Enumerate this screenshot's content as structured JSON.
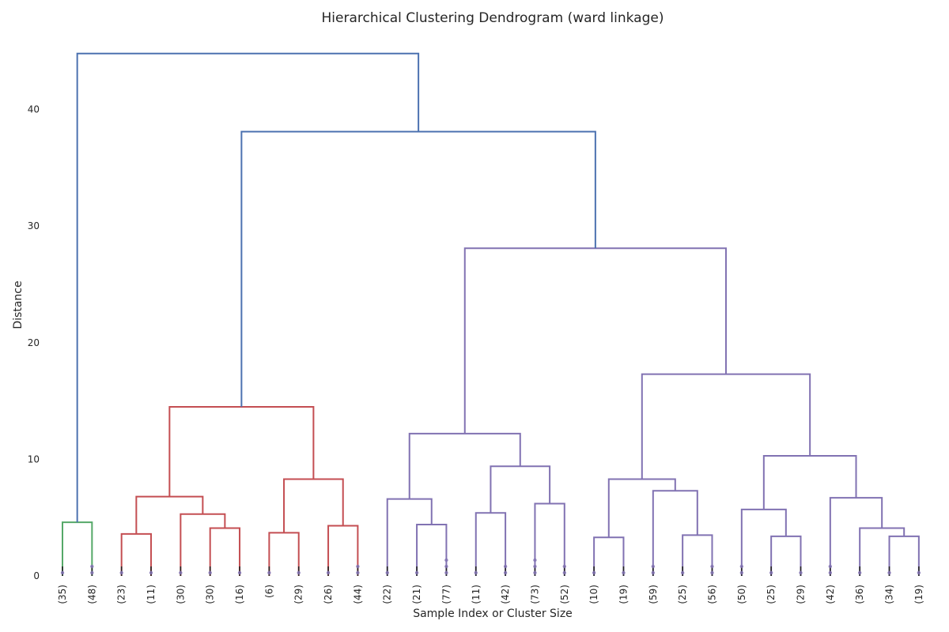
{
  "chart_data": {
    "type": "dendrogram",
    "title": "Hierarchical Clustering Dendrogram (ward linkage)",
    "xlabel": "Sample Index or Cluster Size",
    "ylabel": "Distance",
    "ylim": [
      0,
      46
    ],
    "yticks": [
      "0",
      "10",
      "20",
      "30",
      "40"
    ],
    "grid": false,
    "leaves": [
      "(35)",
      "(48)",
      "(23)",
      "(11)",
      "(30)",
      "(30)",
      "(16)",
      "(6)",
      "(29)",
      "(26)",
      "(44)",
      "(22)",
      "(21)",
      "(77)",
      "(11)",
      "(42)",
      "(73)",
      "(52)",
      "(10)",
      "(19)",
      "(59)",
      "(25)",
      "(56)",
      "(50)",
      "(25)",
      "(29)",
      "(42)",
      "(36)",
      "(34)",
      "(19)"
    ],
    "colors": {
      "green": "#55a868",
      "red": "#c44e52",
      "purple": "#8172b2",
      "above_threshold": "#4c72b0",
      "truncation_marks": "#8172b2"
    },
    "merges": [
      {
        "left": "L0",
        "right": "L1",
        "height": 4.6,
        "color": "green"
      },
      {
        "left": "L2",
        "right": "L3",
        "height": 3.6,
        "color": "red"
      },
      {
        "left": "L5",
        "right": "L6",
        "height": 4.1,
        "color": "red"
      },
      {
        "left": "L4",
        "right": "N2",
        "height": 5.3,
        "color": "red"
      },
      {
        "left": "N1",
        "right": "N3",
        "height": 6.8,
        "color": "red"
      },
      {
        "left": "L7",
        "right": "L8",
        "height": 3.7,
        "color": "red"
      },
      {
        "left": "L9",
        "right": "L10",
        "height": 4.3,
        "color": "red"
      },
      {
        "left": "N5",
        "right": "N6",
        "height": 8.3,
        "color": "red"
      },
      {
        "left": "N4",
        "right": "N7",
        "height": 14.5,
        "color": "red"
      },
      {
        "left": "L12",
        "right": "L13",
        "height": 4.4,
        "color": "purple"
      },
      {
        "left": "L11",
        "right": "N9",
        "height": 6.6,
        "color": "purple"
      },
      {
        "left": "L14",
        "right": "L15",
        "height": 5.4,
        "color": "purple"
      },
      {
        "left": "L16",
        "right": "L17",
        "height": 6.2,
        "color": "purple"
      },
      {
        "left": "N11",
        "right": "N12",
        "height": 9.4,
        "color": "purple"
      },
      {
        "left": "N10",
        "right": "N13",
        "height": 12.2,
        "color": "purple"
      },
      {
        "left": "L18",
        "right": "L19",
        "height": 3.3,
        "color": "purple"
      },
      {
        "left": "L21",
        "right": "L22",
        "height": 3.5,
        "color": "purple"
      },
      {
        "left": "L20",
        "right": "N16",
        "height": 7.3,
        "color": "purple"
      },
      {
        "left": "N15",
        "right": "N17",
        "height": 8.3,
        "color": "purple"
      },
      {
        "left": "L24",
        "right": "L25",
        "height": 3.4,
        "color": "purple"
      },
      {
        "left": "L23",
        "right": "N19",
        "height": 5.7,
        "color": "purple"
      },
      {
        "left": "L28",
        "right": "L29",
        "height": 3.4,
        "color": "purple"
      },
      {
        "left": "L27",
        "right": "N21",
        "height": 4.1,
        "color": "purple"
      },
      {
        "left": "L26",
        "right": "N22",
        "height": 6.7,
        "color": "purple"
      },
      {
        "left": "N20",
        "right": "N23",
        "height": 10.3,
        "color": "purple"
      },
      {
        "left": "N18",
        "right": "N24",
        "height": 17.3,
        "color": "purple"
      },
      {
        "left": "N14",
        "right": "N25",
        "height": 28.1,
        "color": "purple"
      },
      {
        "left": "N8",
        "right": "N26",
        "height": 38.1,
        "color": "above_threshold"
      },
      {
        "left": "N0",
        "right": "N27",
        "height": 44.8,
        "color": "above_threshold"
      }
    ]
  }
}
